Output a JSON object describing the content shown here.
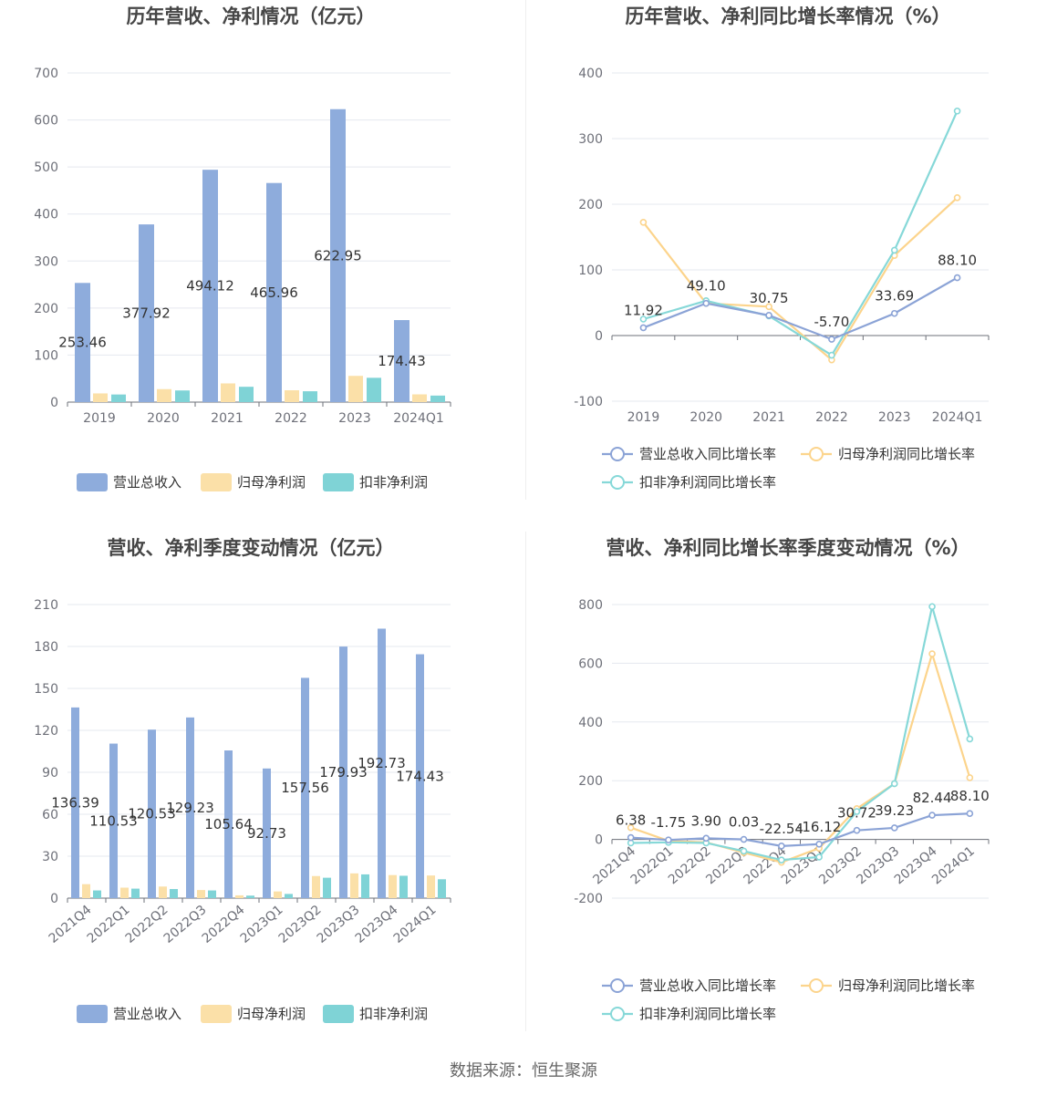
{
  "colors": {
    "revenue": "#8eacdc",
    "net_profit": "#fbe0a8",
    "deducted_profit": "#7fd3d6",
    "revenue_line": "#8ba3d6",
    "net_profit_line": "#fcd48c",
    "deducted_profit_line": "#86d8d8",
    "grid": "#e5e8ef",
    "axis": "#6e7079"
  },
  "legend": {
    "revenue": "营业总收入",
    "net_profit": "归母净利润",
    "deducted_profit": "扣非净利润",
    "revenue_growth": "营业总收入同比增长率",
    "net_profit_growth": "归母净利润同比增长率",
    "deducted_profit_growth": "扣非净利润同比增长率"
  },
  "source": "数据来源：恒生聚源",
  "chart_data": [
    {
      "id": "annual-amount",
      "type": "bar",
      "title": "历年营收、净利情况（亿元）",
      "categories": [
        "2019",
        "2020",
        "2021",
        "2022",
        "2023",
        "2024Q1"
      ],
      "ylim": [
        0,
        700
      ],
      "yticks": [
        0,
        100,
        200,
        300,
        400,
        500,
        600,
        700
      ],
      "grid": true,
      "legend_position": "bottom",
      "series": [
        {
          "name": "营业总收入",
          "values": [
            253.46,
            377.92,
            494.12,
            465.96,
            622.95,
            174.43
          ],
          "labels": [
            "253.46",
            "377.92",
            "494.12",
            "465.96",
            "622.95",
            "174.43"
          ]
        },
        {
          "name": "归母净利润",
          "values": [
            18.5,
            27.6,
            39.8,
            25.2,
            55.8,
            16.5
          ]
        },
        {
          "name": "扣非净利润",
          "values": [
            16.2,
            24.8,
            32.6,
            23.1,
            51.7,
            13.9
          ]
        }
      ]
    },
    {
      "id": "annual-growth",
      "type": "line",
      "title": "历年营收、净利同比增长率情况（%）",
      "categories": [
        "2019",
        "2020",
        "2021",
        "2022",
        "2023",
        "2024Q1"
      ],
      "ylim": [
        -100,
        400
      ],
      "yticks": [
        -100,
        0,
        100,
        200,
        300,
        400
      ],
      "grid": true,
      "legend_position": "bottom",
      "series": [
        {
          "name": "营业总收入同比增长率",
          "values": [
            11.92,
            49.1,
            30.75,
            -5.7,
            33.69,
            88.1
          ],
          "labels": [
            "11.92",
            "49.10",
            "30.75",
            "-5.70",
            "33.69",
            "88.10"
          ]
        },
        {
          "name": "归母净利润同比增长率",
          "values": [
            172.5,
            49.0,
            44.0,
            -37.0,
            122.0,
            210.0
          ]
        },
        {
          "name": "扣非净利润同比增长率",
          "values": [
            25.0,
            53.0,
            30.0,
            -30.0,
            130.0,
            342.0
          ]
        }
      ]
    },
    {
      "id": "quarterly-amount",
      "type": "bar",
      "title": "营收、净利季度变动情况（亿元）",
      "categories": [
        "2021Q4",
        "2022Q1",
        "2022Q2",
        "2022Q3",
        "2022Q4",
        "2023Q1",
        "2023Q2",
        "2023Q3",
        "2023Q4",
        "2024Q1"
      ],
      "ylim": [
        0,
        210
      ],
      "yticks": [
        0,
        30,
        60,
        90,
        120,
        150,
        180,
        210
      ],
      "grid": true,
      "legend_position": "bottom",
      "series": [
        {
          "name": "营业总收入",
          "values": [
            136.39,
            110.53,
            120.53,
            129.23,
            105.64,
            92.73,
            157.56,
            179.93,
            192.73,
            174.43
          ],
          "labels": [
            "136.39",
            "110.53",
            "120.53",
            "129.23",
            "105.64",
            "92.73",
            "157.56",
            "179.93",
            "192.73",
            "174.43"
          ]
        },
        {
          "name": "归母净利润",
          "values": [
            10.0,
            7.5,
            8.3,
            5.8,
            2.0,
            4.8,
            15.8,
            17.7,
            16.5,
            16.2
          ]
        },
        {
          "name": "扣非净利润",
          "values": [
            5.5,
            6.8,
            6.5,
            5.5,
            1.8,
            3.0,
            14.6,
            17.0,
            16.0,
            13.5
          ]
        }
      ]
    },
    {
      "id": "quarterly-growth",
      "type": "line",
      "title": "营收、净利同比增长率季度变动情况（%）",
      "categories": [
        "2021Q4",
        "2022Q1",
        "2022Q2",
        "2022Q3",
        "2022Q4",
        "2023Q1",
        "2023Q2",
        "2023Q3",
        "2023Q4",
        "2024Q1"
      ],
      "ylim": [
        -200,
        800
      ],
      "yticks": [
        -200,
        0,
        200,
        400,
        600,
        800
      ],
      "grid": true,
      "legend_position": "bottom",
      "series": [
        {
          "name": "营业总收入同比增长率",
          "values": [
            6.38,
            -1.75,
            3.9,
            0.03,
            -22.54,
            -16.12,
            30.72,
            39.23,
            82.44,
            88.1
          ],
          "labels": [
            "6.38",
            "-1.75",
            "3.90",
            "0.03",
            "-22.54",
            "-16.12",
            "30.72",
            "39.23",
            "82.44",
            "88.10"
          ]
        },
        {
          "name": "归母净利润同比增长率",
          "values": [
            40.0,
            -5.0,
            -10.0,
            -45.0,
            -78.0,
            -30.0,
            105.0,
            190.0,
            632.0,
            210.0
          ]
        },
        {
          "name": "扣非净利润同比增长率",
          "values": [
            -12.0,
            -10.0,
            -12.0,
            -40.0,
            -70.0,
            -60.0,
            95.0,
            190.0,
            793.0,
            342.0
          ]
        }
      ]
    }
  ]
}
